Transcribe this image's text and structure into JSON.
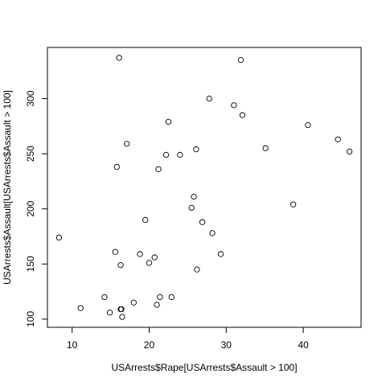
{
  "chart_data": {
    "type": "scatter",
    "x_label": "USArrests$Rape[USArrests$Assault > 100]",
    "y_label": "USArrests$Assault[USArrests$Assault > 100]",
    "x": [
      21.2,
      44.5,
      31.0,
      19.5,
      40.6,
      38.7,
      11.1,
      15.8,
      31.9,
      25.8,
      14.2,
      24.0,
      21.0,
      18.0,
      16.3,
      22.2,
      27.8,
      16.3,
      35.1,
      17.1,
      28.2,
      16.4,
      16.5,
      46.0,
      18.8,
      32.1,
      26.1,
      16.1,
      21.4,
      20.0,
      29.3,
      14.9,
      8.3,
      22.5,
      26.9,
      25.5,
      22.9,
      20.7,
      26.2,
      15.6
    ],
    "values": [
      236,
      263,
      294,
      190,
      276,
      204,
      110,
      238,
      335,
      211,
      120,
      249,
      113,
      115,
      109,
      249,
      300,
      149,
      255,
      259,
      178,
      109,
      102,
      252,
      159,
      285,
      254,
      337,
      120,
      151,
      159,
      106,
      174,
      279,
      188,
      201,
      120,
      156,
      145,
      161
    ],
    "color": "#000000",
    "xlim": [
      6.8,
      47.5
    ],
    "ylim": [
      92.6,
      346.4
    ],
    "xticks": [
      10,
      20,
      30,
      40
    ],
    "yticks": [
      100,
      150,
      200,
      250,
      300
    ],
    "grid": false
  }
}
